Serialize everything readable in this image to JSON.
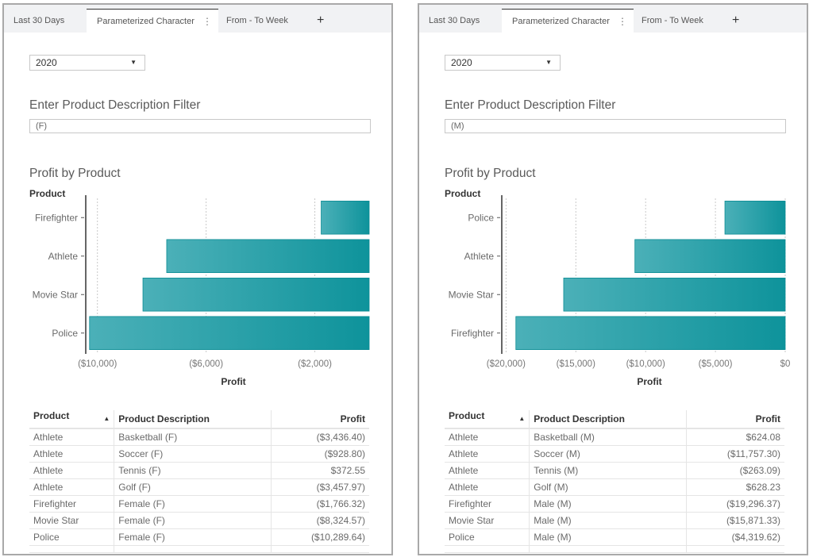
{
  "tabs": [
    "Last 30 Days",
    "Parameterized Character",
    "From - To Week"
  ],
  "tab_menu_icon": "kebab-vertical-icon",
  "add_tab_icon": "plus-icon",
  "panels": [
    {
      "year_select": "2020",
      "filter_title": "Enter Product Description Filter",
      "filter_value": "(F)",
      "chart_title": "Profit by Product",
      "table": {
        "headers": [
          "Product",
          "Product Description",
          "Profit"
        ],
        "sort_indicator": "▲",
        "rows": [
          [
            "Athlete",
            "Basketball (F)",
            "($3,436.40)"
          ],
          [
            "Athlete",
            "Soccer (F)",
            "($928.80)"
          ],
          [
            "Athlete",
            "Tennis (F)",
            "$372.55"
          ],
          [
            "Athlete",
            "Golf (F)",
            "($3,457.97)"
          ],
          [
            "Firefighter",
            "Female (F)",
            "($1,766.32)"
          ],
          [
            "Movie Star",
            "Female (F)",
            "($8,324.57)"
          ],
          [
            "Police",
            "Female (F)",
            "($10,289.64)"
          ]
        ]
      }
    },
    {
      "year_select": "2020",
      "filter_title": "Enter Product Description Filter",
      "filter_value": "(M)",
      "chart_title": "Profit by Product",
      "table": {
        "headers": [
          "Product",
          "Product Description",
          "Profit"
        ],
        "sort_indicator": "▲",
        "rows": [
          [
            "Athlete",
            "Basketball (M)",
            "$624.08"
          ],
          [
            "Athlete",
            "Soccer (M)",
            "($11,757.30)"
          ],
          [
            "Athlete",
            "Tennis (M)",
            "($263.09)"
          ],
          [
            "Athlete",
            "Golf (M)",
            "$628.23"
          ],
          [
            "Firefighter",
            "Male (M)",
            "($19,296.37)"
          ],
          [
            "Movie Star",
            "Male (M)",
            "($15,871.33)"
          ],
          [
            "Police",
            "Male (M)",
            "($4,319.62)"
          ]
        ]
      }
    }
  ],
  "chart_data": [
    {
      "type": "bar",
      "orientation": "horizontal",
      "title": "Profit by Product",
      "ylabel": "Product",
      "xlabel": "Profit",
      "categories": [
        "Firefighter",
        "Athlete",
        "Movie Star",
        "Police"
      ],
      "values": [
        -1766.32,
        -7450.62,
        -8324.57,
        -10289.64
      ],
      "xlim": [
        -10400,
        0
      ],
      "xticks": [
        -10000,
        -6000,
        -2000
      ],
      "xtick_labels": [
        "($10,000)",
        "($6,000)",
        "($2,000)"
      ],
      "grid": true,
      "bar_color": "#0e939b",
      "bar_color_light": "#4bb0b8"
    },
    {
      "type": "bar",
      "orientation": "horizontal",
      "title": "Profit by Product",
      "ylabel": "Product",
      "xlabel": "Profit",
      "categories": [
        "Police",
        "Athlete",
        "Movie Star",
        "Firefighter"
      ],
      "values": [
        -4319.62,
        -10768.08,
        -15871.33,
        -19296.37
      ],
      "xlim": [
        -20250,
        0
      ],
      "xticks": [
        -20000,
        -15000,
        -10000,
        -5000,
        0
      ],
      "xtick_labels": [
        "($20,000)",
        "($15,000)",
        "($10,000)",
        "($5,000)",
        "$0"
      ],
      "grid": true,
      "bar_color": "#0e939b",
      "bar_color_light": "#4bb0b8"
    }
  ]
}
